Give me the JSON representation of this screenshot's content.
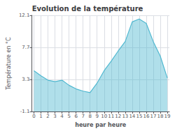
{
  "chart_data": {
    "type": "area",
    "title": "Evolution de la température",
    "xlabel": "heure par heure",
    "ylabel": "Température en °C",
    "x": [
      0,
      1,
      2,
      3,
      4,
      5,
      6,
      7,
      8,
      9,
      10,
      11,
      12,
      13,
      14,
      15,
      16,
      17,
      18,
      19
    ],
    "values": [
      4.5,
      3.8,
      3.2,
      3.0,
      3.2,
      2.5,
      2.0,
      1.7,
      1.5,
      2.8,
      4.5,
      5.8,
      7.2,
      8.5,
      11.2,
      11.6,
      11.0,
      8.5,
      6.5,
      3.5
    ],
    "color": "#50b8d0",
    "xlim": [
      -0.3,
      19.3
    ],
    "xticks": [
      0,
      1,
      2,
      3,
      4,
      5,
      6,
      7,
      8,
      9,
      10,
      11,
      12,
      13,
      14,
      15,
      16,
      17,
      18,
      19
    ],
    "ylim": [
      -1.1,
      12.1
    ],
    "yticks": [
      -1.1,
      3.3,
      7.7,
      12.1
    ],
    "grid": true
  }
}
